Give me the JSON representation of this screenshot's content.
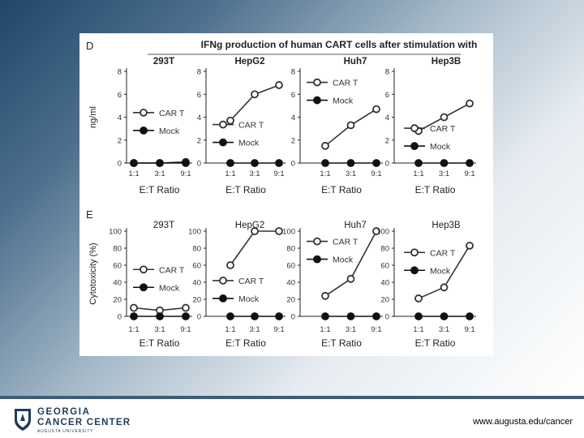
{
  "slide": {
    "url": "www.augusta.edu/cancer",
    "logo": {
      "line1": "GEORGIA",
      "line2": "CANCER CENTER",
      "line3": "AUGUSTA UNIVERSITY"
    }
  },
  "colors": {
    "cart": "#333333",
    "mock": "#111111",
    "footer": "#2f4a63",
    "logo": "#1f3d5c"
  },
  "chart_data": [
    {
      "panel_label": "D",
      "title": "IFNg production of human CART cells after stimulation with",
      "ylabel": "ng/ml",
      "xlabel": "E:T Ratio",
      "type": "line",
      "ylim": [
        0,
        8
      ],
      "yticks": [
        0,
        2,
        4,
        6,
        8
      ],
      "categories": [
        "1:1",
        "3:1",
        "9:1"
      ],
      "subplots": [
        {
          "name": "293T",
          "series": [
            {
              "name": "CAR T",
              "values": [
                0.0,
                0.0,
                0.1
              ]
            },
            {
              "name": "Mock",
              "values": [
                0.0,
                0.0,
                0.0
              ]
            }
          ],
          "legend": "left-middle"
        },
        {
          "name": "HepG2",
          "series": [
            {
              "name": "CAR T",
              "values": [
                3.7,
                6.0,
                6.8
              ]
            },
            {
              "name": "Mock",
              "values": [
                0.0,
                0.0,
                0.0
              ]
            }
          ],
          "legend": "left-bottom"
        },
        {
          "name": "Huh7",
          "series": [
            {
              "name": "CAR T",
              "values": [
                1.5,
                3.3,
                4.7
              ]
            },
            {
              "name": "Mock",
              "values": [
                0.0,
                0.0,
                0.0
              ]
            }
          ],
          "legend": "top-left"
        },
        {
          "name": "Hep3B",
          "series": [
            {
              "name": "CAR T",
              "values": [
                2.8,
                4.0,
                5.2
              ]
            },
            {
              "name": "Mock",
              "values": [
                0.0,
                0.0,
                0.0
              ]
            }
          ],
          "legend": "bottom-right"
        }
      ]
    },
    {
      "panel_label": "E",
      "ylabel": "Cytotoxicity (%)",
      "xlabel": "E:T Ratio",
      "type": "line",
      "ylim": [
        0,
        100
      ],
      "yticks": [
        0,
        20,
        40,
        60,
        80,
        100
      ],
      "categories": [
        "1:1",
        "3:1",
        "9:1"
      ],
      "subplots": [
        {
          "name": "293T",
          "series": [
            {
              "name": "CAR T",
              "values": [
                10,
                7,
                10
              ]
            },
            {
              "name": "Mock",
              "values": [
                0,
                0,
                0
              ]
            }
          ],
          "legend": "left-middle"
        },
        {
          "name": "HepG2",
          "series": [
            {
              "name": "CAR T",
              "values": [
                60,
                100,
                100
              ]
            },
            {
              "name": "Mock",
              "values": [
                0,
                0,
                0
              ]
            }
          ],
          "legend": "left-bottom"
        },
        {
          "name": "Huh7",
          "series": [
            {
              "name": "CAR T",
              "values": [
                24,
                44,
                100
              ]
            },
            {
              "name": "Mock",
              "values": [
                0,
                0,
                0
              ]
            }
          ],
          "legend": "top-left"
        },
        {
          "name": "Hep3B",
          "series": [
            {
              "name": "CAR T",
              "values": [
                21,
                34,
                83
              ]
            },
            {
              "name": "Mock",
              "values": [
                0,
                0,
                0
              ]
            }
          ],
          "legend": "right-middle"
        }
      ]
    }
  ]
}
